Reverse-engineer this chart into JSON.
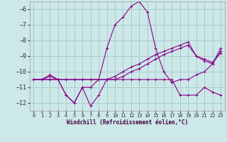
{
  "xlabel": "Windchill (Refroidissement éolien,°C)",
  "background_color": "#cce8e8",
  "grid_color": "#aacccc",
  "line_color": "#880088",
  "xlim": [
    -0.5,
    23.5
  ],
  "ylim": [
    -12.5,
    -5.5
  ],
  "xticks": [
    0,
    1,
    2,
    3,
    4,
    5,
    6,
    7,
    8,
    9,
    10,
    11,
    12,
    13,
    14,
    15,
    16,
    17,
    18,
    19,
    20,
    21,
    22,
    23
  ],
  "yticks": [
    -12,
    -11,
    -10,
    -9,
    -8,
    -7,
    -6
  ],
  "series": [
    {
      "x": [
        0,
        1,
        2,
        3,
        4,
        5,
        6,
        7,
        8,
        9,
        10,
        11,
        12,
        13,
        14,
        15,
        16,
        17,
        18,
        19,
        20,
        21,
        22,
        23
      ],
      "y": [
        -10.5,
        -10.5,
        -10.3,
        -10.5,
        -11.5,
        -12.0,
        -11.0,
        -12.2,
        -11.5,
        -10.5,
        -10.5,
        -10.5,
        -10.5,
        -10.5,
        -10.5,
        -10.5,
        -10.5,
        -10.5,
        -11.5,
        -11.5,
        -11.5,
        -11.0,
        -11.3,
        -11.5
      ]
    },
    {
      "x": [
        0,
        1,
        2,
        3,
        4,
        5,
        6,
        7,
        8,
        9,
        10,
        11,
        12,
        13,
        14,
        15,
        16,
        17,
        18,
        19,
        20,
        21,
        22,
        23
      ],
      "y": [
        -10.5,
        -10.5,
        -10.5,
        -10.5,
        -10.5,
        -10.5,
        -10.5,
        -10.5,
        -10.5,
        -10.5,
        -10.3,
        -10.0,
        -9.7,
        -9.5,
        -9.2,
        -8.9,
        -8.7,
        -8.5,
        -8.3,
        -8.1,
        -9.0,
        -9.3,
        -9.5,
        -8.7
      ]
    },
    {
      "x": [
        0,
        1,
        2,
        3,
        4,
        5,
        6,
        7,
        8,
        9,
        10,
        11,
        12,
        13,
        14,
        15,
        16,
        17,
        18,
        19,
        20,
        21,
        22,
        23
      ],
      "y": [
        -10.5,
        -10.5,
        -10.2,
        -10.5,
        -11.5,
        -12.0,
        -11.0,
        -11.0,
        -10.5,
        -8.5,
        -7.0,
        -6.5,
        -5.8,
        -5.5,
        -6.2,
        -8.5,
        -10.0,
        -10.7,
        -10.5,
        -10.5,
        -10.2,
        -10.0,
        -9.5,
        -8.5
      ]
    },
    {
      "x": [
        0,
        1,
        2,
        3,
        4,
        5,
        6,
        7,
        8,
        9,
        10,
        11,
        12,
        13,
        14,
        15,
        16,
        17,
        18,
        19,
        20,
        21,
        22,
        23
      ],
      "y": [
        -10.5,
        -10.5,
        -10.5,
        -10.5,
        -10.5,
        -10.5,
        -10.5,
        -10.5,
        -10.5,
        -10.5,
        -10.5,
        -10.3,
        -10.0,
        -9.8,
        -9.5,
        -9.2,
        -8.9,
        -8.7,
        -8.5,
        -8.3,
        -9.0,
        -9.2,
        -9.4,
        -8.8
      ]
    }
  ]
}
